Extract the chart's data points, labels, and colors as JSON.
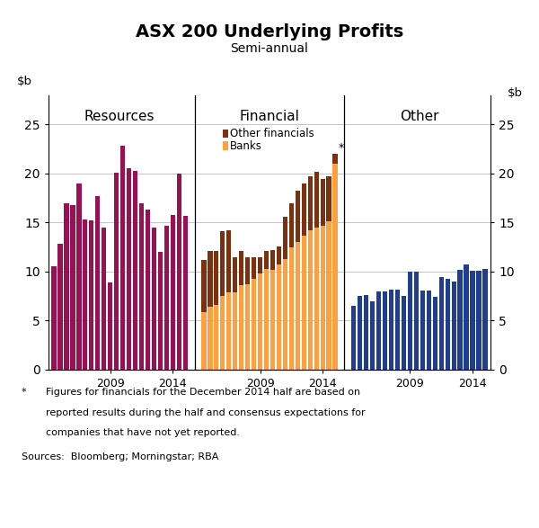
{
  "title": "ASX 200 Underlying Profits",
  "subtitle": "Semi-annual",
  "ylim": [
    0,
    28
  ],
  "yticks": [
    0,
    5,
    10,
    15,
    20,
    25
  ],
  "panel_labels": [
    "Resources",
    "Financial",
    "Other"
  ],
  "resources_color": "#991155",
  "banks_color": "#FFA040",
  "other_fin_color": "#7B3010",
  "other_color": "#1F3E8F",
  "resources_data": [
    10.5,
    12.8,
    17.0,
    16.8,
    19.0,
    15.3,
    15.2,
    17.7,
    14.5,
    8.9,
    20.1,
    22.8,
    20.5,
    20.3,
    17.0,
    16.3,
    14.5,
    12.0,
    14.7,
    15.8,
    20.0,
    15.7
  ],
  "banks_data": [
    5.9,
    6.4,
    6.6,
    7.5,
    7.9,
    7.9,
    8.6,
    8.7,
    9.3,
    9.8,
    10.3,
    10.2,
    10.7,
    11.3,
    12.5,
    13.0,
    13.7,
    14.2,
    14.5,
    14.7,
    15.1,
    21.0
  ],
  "other_fin_data": [
    5.3,
    5.7,
    5.5,
    6.6,
    6.3,
    3.6,
    3.5,
    2.8,
    2.2,
    1.7,
    1.8,
    2.0,
    1.9,
    4.3,
    4.5,
    5.2,
    5.3,
    5.5,
    5.7,
    4.7,
    4.6,
    1.0
  ],
  "other_data": [
    6.5,
    7.5,
    7.6,
    7.0,
    8.0,
    8.0,
    8.2,
    8.2,
    7.5,
    10.0,
    10.0,
    8.1,
    8.1,
    7.4,
    9.4,
    9.3,
    9.0,
    10.2,
    10.7,
    10.1,
    10.1,
    10.3
  ],
  "footnote_star": "*",
  "footnote_text1": "Figures for financials for the December 2014 half are based on",
  "footnote_text2": "reported results during the half and consensus expectations for",
  "footnote_text3": "companies that have not yet reported.",
  "sources": "Sources:  Bloomberg; Morningstar; RBA"
}
